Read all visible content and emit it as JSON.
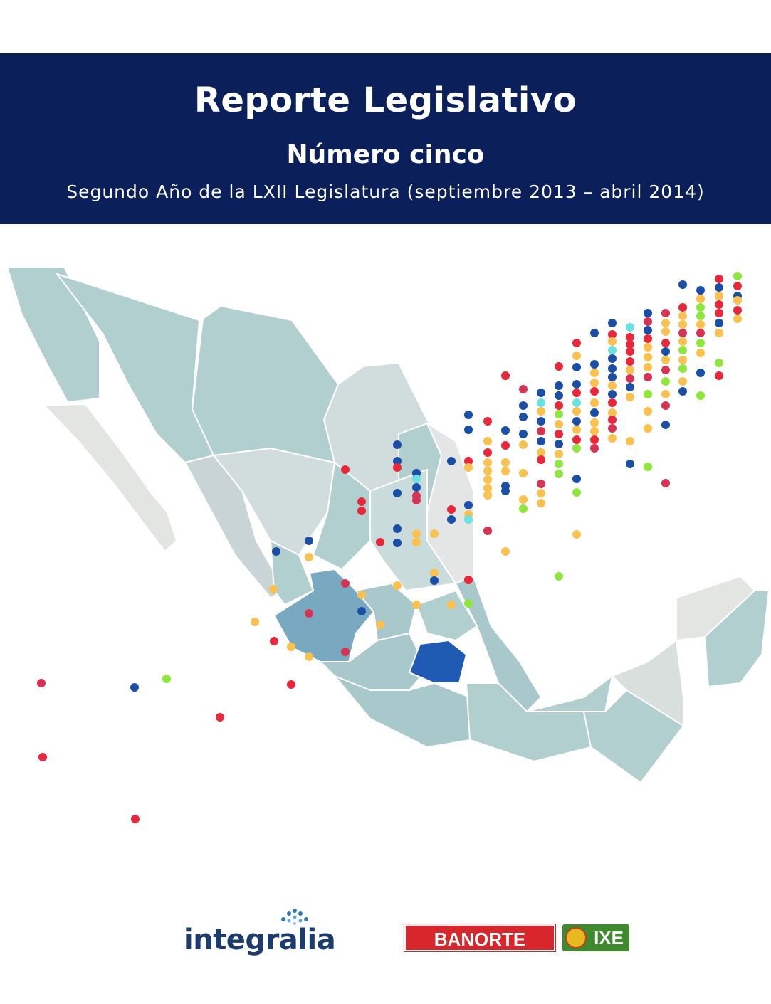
{
  "header": {
    "title": "Reporte Legislativo",
    "subtitle": "Número cinco",
    "period": "Segundo Año de la LXII Legislatura (septiembre 2013 – abril 2014)"
  },
  "colors": {
    "banner": "#0b1f5a",
    "party_red": "#e8283a",
    "party_blue": "#1b4ea6",
    "party_yellow": "#fbc14f",
    "party_green": "#8ee63e",
    "party_cyan": "#6be1e3",
    "party_crimson": "#d63354"
  },
  "logos": {
    "integralia": "integralia",
    "banorte": "BANORTE",
    "ixe": "IXE"
  }
}
